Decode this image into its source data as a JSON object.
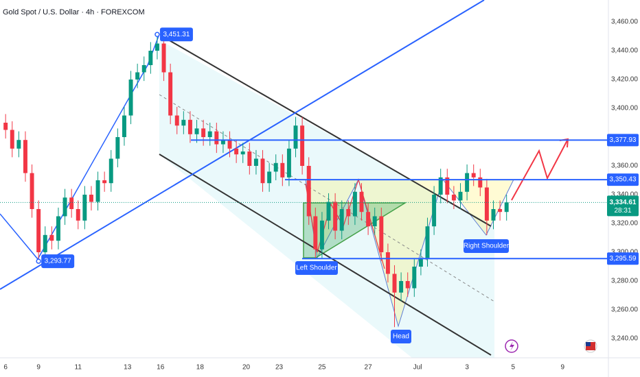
{
  "chart_data": {
    "type": "candlestick",
    "title": "Gold Spot / U.S. Dollar · 4h · FOREXCOM",
    "x": [
      0,
      2,
      4,
      6,
      8,
      10,
      12,
      14,
      16,
      18,
      20,
      22,
      24,
      26,
      28,
      30,
      32,
      34,
      36,
      38,
      40,
      42,
      44,
      46,
      48,
      50,
      52,
      54,
      56,
      58,
      60,
      62,
      64,
      66,
      68,
      70,
      72,
      74,
      76,
      78,
      80,
      82,
      84,
      86,
      88,
      90,
      92,
      94,
      96,
      98,
      100,
      102,
      104,
      106,
      108,
      110,
      112,
      114,
      116,
      118,
      120,
      122,
      124,
      126,
      128,
      130,
      132,
      134,
      136,
      138,
      140,
      142,
      144,
      146,
      148,
      150,
      152
    ],
    "open": [
      3390,
      3385,
      3372,
      3378,
      3355,
      3330,
      3300,
      3312,
      3308,
      3325,
      3338,
      3330,
      3322,
      3340,
      3335,
      3350,
      3348,
      3365,
      3380,
      3395,
      3420,
      3425,
      3430,
      3440,
      3445,
      3425,
      3395,
      3388,
      3392,
      3382,
      3386,
      3380,
      3384,
      3375,
      3378,
      3372,
      3368,
      3370,
      3360,
      3365,
      3348,
      3356,
      3362,
      3352,
      3372,
      3388,
      3360,
      3325,
      3302,
      3322,
      3335,
      3315,
      3330,
      3325,
      3342,
      3328,
      3318,
      3325,
      3300,
      3285,
      3272,
      3280,
      3275,
      3290,
      3296,
      3318,
      3340,
      3352,
      3340,
      3336,
      3342,
      3355,
      3352,
      3345,
      3322,
      3330,
      3328
    ],
    "high": [
      3396,
      3391,
      3384,
      3384,
      3361,
      3336,
      3318,
      3318,
      3331,
      3344,
      3344,
      3336,
      3346,
      3346,
      3356,
      3356,
      3371,
      3386,
      3401,
      3426,
      3431,
      3436,
      3446,
      3451.31,
      3448,
      3431,
      3401,
      3398,
      3398,
      3392,
      3392,
      3390,
      3390,
      3384,
      3384,
      3378,
      3376,
      3376,
      3371,
      3371,
      3362,
      3368,
      3368,
      3378,
      3394,
      3394,
      3366,
      3331,
      3328,
      3341,
      3341,
      3336,
      3336,
      3348,
      3348,
      3334,
      3331,
      3331,
      3306,
      3291,
      3286,
      3286,
      3296,
      3302,
      3324,
      3346,
      3358,
      3358,
      3346,
      3348,
      3361,
      3361,
      3358,
      3351,
      3336,
      3336,
      3340
    ],
    "low": [
      3379,
      3366,
      3366,
      3349,
      3324,
      3293.77,
      3294,
      3302,
      3302,
      3319,
      3324,
      3316,
      3316,
      3329,
      3329,
      3342,
      3342,
      3359,
      3374,
      3389,
      3414,
      3419,
      3424,
      3434,
      3419,
      3389,
      3382,
      3382,
      3376,
      3376,
      3374,
      3374,
      3369,
      3369,
      3366,
      3362,
      3362,
      3354,
      3354,
      3342,
      3342,
      3350,
      3346,
      3346,
      3366,
      3354,
      3319,
      3296,
      3296,
      3316,
      3309,
      3309,
      3319,
      3319,
      3322,
      3312,
      3312,
      3294,
      3279,
      3248,
      3266,
      3269,
      3269,
      3284,
      3290,
      3312,
      3334,
      3334,
      3330,
      3330,
      3336,
      3346,
      3339,
      3312,
      3316,
      3322,
      3322
    ],
    "close": [
      3385,
      3372,
      3378,
      3355,
      3330,
      3300,
      3312,
      3308,
      3325,
      3338,
      3330,
      3322,
      3340,
      3335,
      3350,
      3348,
      3365,
      3380,
      3395,
      3420,
      3425,
      3430,
      3440,
      3445,
      3425,
      3395,
      3388,
      3392,
      3382,
      3386,
      3380,
      3384,
      3375,
      3378,
      3372,
      3368,
      3370,
      3360,
      3365,
      3348,
      3356,
      3362,
      3352,
      3372,
      3388,
      3360,
      3325,
      3302,
      3322,
      3335,
      3315,
      3330,
      3325,
      3342,
      3328,
      3318,
      3325,
      3300,
      3285,
      3272,
      3280,
      3275,
      3290,
      3296,
      3318,
      3340,
      3352,
      3340,
      3336,
      3342,
      3355,
      3352,
      3345,
      3322,
      3330,
      3328,
      3334.61
    ],
    "up_color": "#089981",
    "down_color": "#f23645",
    "xlim": [
      -1.7,
      182.9
    ],
    "ylim": [
      3226.67,
      3475.24
    ],
    "xticks": [
      {
        "value": 0,
        "label": "6"
      },
      {
        "value": 10,
        "label": "9"
      },
      {
        "value": 22,
        "label": "11"
      },
      {
        "value": 37,
        "label": "13"
      },
      {
        "value": 47,
        "label": "16"
      },
      {
        "value": 59,
        "label": "18"
      },
      {
        "value": 73,
        "label": "20"
      },
      {
        "value": 83,
        "label": "23"
      },
      {
        "value": 96,
        "label": "25"
      },
      {
        "value": 110,
        "label": "27"
      },
      {
        "value": 125,
        "label": "Jul"
      },
      {
        "value": 140,
        "label": "3"
      },
      {
        "value": 154,
        "label": "5"
      },
      {
        "value": 169,
        "label": "9"
      }
    ],
    "yticks": [
      {
        "value": 3460,
        "label": "3,460.00"
      },
      {
        "value": 3440,
        "label": "3,440.00"
      },
      {
        "value": 3420,
        "label": "3,420.00"
      },
      {
        "value": 3400,
        "label": "3,400.00"
      },
      {
        "value": 3380,
        "label": "3,380.00"
      },
      {
        "value": 3360,
        "label": "3,360.00"
      },
      {
        "value": 3340,
        "label": "3,340.00"
      },
      {
        "value": 3320,
        "label": "3,320.00"
      },
      {
        "value": 3300,
        "label": "3,300.00"
      },
      {
        "value": 3280,
        "label": "3,280.00"
      },
      {
        "value": 3260,
        "label": "3,260.00"
      },
      {
        "value": 3240,
        "label": "3,240.00"
      }
    ],
    "grid": false,
    "levels": [
      {
        "value": 3377.93,
        "label": "3,377.93"
      },
      {
        "value": 3350.43,
        "label": "3,350.43"
      },
      {
        "value": 3295.59,
        "label": "3,295.59"
      }
    ],
    "level_color": "#2962ff",
    "price_labels": [
      {
        "x": 46,
        "value": 3451.31,
        "label": "3,451.31"
      },
      {
        "x": 10,
        "value": 3293.77,
        "label": "3,293.77"
      }
    ],
    "current_price": {
      "value": 3334.61,
      "label": "3,334.61",
      "countdown": "28:31"
    },
    "annotations": [
      "Left Shoulder",
      "Head",
      "Right Shoulder"
    ]
  }
}
